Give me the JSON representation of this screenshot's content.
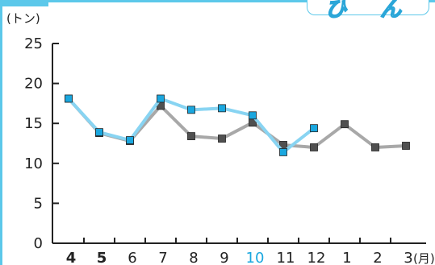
{
  "badge": {
    "glyphs": [
      "ひ",
      "ん"
    ]
  },
  "chart_data": {
    "type": "line",
    "title": "",
    "ylabel": "(トン)",
    "xlabel": "(月)",
    "ylim": [
      0,
      25
    ],
    "yticks": [
      0,
      5,
      10,
      15,
      20,
      25
    ],
    "categories": [
      "4",
      "5",
      "6",
      "7",
      "8",
      "9",
      "10",
      "11",
      "12",
      "1",
      "2",
      "3"
    ],
    "category_styles": {
      "4": "bold",
      "5": "bold",
      "10": "highlight"
    },
    "series": [
      {
        "values": [
          18.1,
          13.9,
          12.9,
          18.1,
          16.7,
          16.9,
          16.0,
          11.4,
          14.4,
          null,
          null,
          null
        ],
        "line_color": "#88d4f2",
        "marker_color": "#1aa7df"
      },
      {
        "values": [
          18.1,
          13.8,
          12.8,
          17.2,
          13.4,
          13.1,
          15.1,
          12.3,
          12.0,
          14.9,
          12.0,
          12.2
        ],
        "line_color": "#a8a8a8",
        "marker_color": "#505050"
      }
    ],
    "colors": {
      "axis": "#222222",
      "highlight": "#1aa7df",
      "frame": "#5cc8ea"
    }
  }
}
